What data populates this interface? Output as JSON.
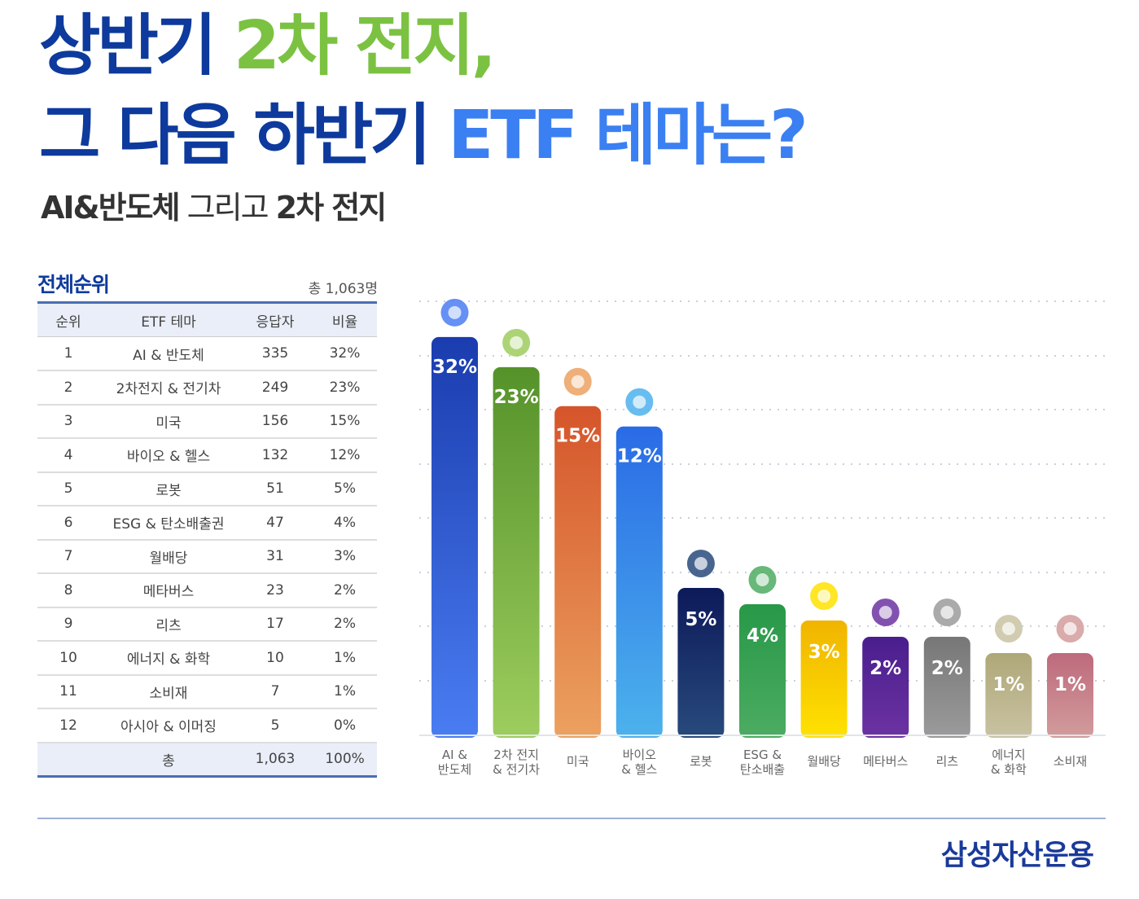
{
  "title": {
    "line1_a": "상반기 ",
    "line1_b": "2차 전지,",
    "line2_a": "그 다음 하반기 ",
    "line2_b": "ETF 테마는?"
  },
  "subtitle": {
    "a": "AI&반도체",
    "b": " 그리고 ",
    "c": "2차 전지"
  },
  "table": {
    "title": "전체순위",
    "total": "총 1,063명",
    "headers": [
      "순위",
      "ETF 테마",
      "응답자",
      "비율"
    ],
    "rows": [
      [
        "1",
        "AI & 반도체",
        "335",
        "32%"
      ],
      [
        "2",
        "2차전지 & 전기차",
        "249",
        "23%"
      ],
      [
        "3",
        "미국",
        "156",
        "15%"
      ],
      [
        "4",
        "바이오 & 헬스",
        "132",
        "12%"
      ],
      [
        "5",
        "로봇",
        "51",
        "5%"
      ],
      [
        "6",
        "ESG & 탄소배출권",
        "47",
        "4%"
      ],
      [
        "7",
        "월배당",
        "31",
        "3%"
      ],
      [
        "8",
        "메타버스",
        "23",
        "2%"
      ],
      [
        "9",
        "리츠",
        "17",
        "2%"
      ],
      [
        "10",
        "에너지 & 화학",
        "10",
        "1%"
      ],
      [
        "11",
        "소비재",
        "7",
        "1%"
      ],
      [
        "12",
        "아시아 & 이머징",
        "5",
        "0%"
      ]
    ],
    "sum": [
      "",
      "총",
      "1,063",
      "100%"
    ]
  },
  "chart_data": {
    "type": "bar",
    "grid": true,
    "categories": [
      "AI &\n반도체",
      "2차 전지\n& 전기차",
      "미국",
      "바이오\n& 헬스",
      "로봇",
      "ESG &\n탄소배출",
      "월배당",
      "메타버스",
      "리츠",
      "에너지\n& 화학",
      "소비재"
    ],
    "values": [
      32,
      23,
      15,
      12,
      5,
      4,
      3,
      2,
      2,
      1,
      1
    ],
    "labels": [
      "32%",
      "23%",
      "15%",
      "12%",
      "5%",
      "4%",
      "3%",
      "2%",
      "2%",
      "1%",
      "1%"
    ],
    "icons": [
      "ai-chip-icon",
      "battery-icon",
      "us-flag-icon",
      "molecule-icon",
      "robot-arm-icon",
      "sprout-icon",
      "money-bag-icon",
      "vr-headset-icon",
      "house-icon",
      "atom-icon",
      "shopping-basket-icon"
    ],
    "colors": [
      [
        "#1a3cae",
        "#4a7df2"
      ],
      [
        "#55922a",
        "#9dcd5e"
      ],
      [
        "#d5552a",
        "#eca160"
      ],
      [
        "#2a6be6",
        "#4cb2ec"
      ],
      [
        "#0d1a5a",
        "#284a7c"
      ],
      [
        "#289848",
        "#4cac62"
      ],
      [
        "#f0b400",
        "#ffe200"
      ],
      [
        "#4a1e8e",
        "#6c32a2"
      ],
      [
        "#777777",
        "#9b9b9b"
      ],
      [
        "#aea878",
        "#c9c2a2"
      ],
      [
        "#bd6a7c",
        "#d29c9c"
      ]
    ]
  },
  "footer": {
    "logo": "삼성자산운용"
  }
}
